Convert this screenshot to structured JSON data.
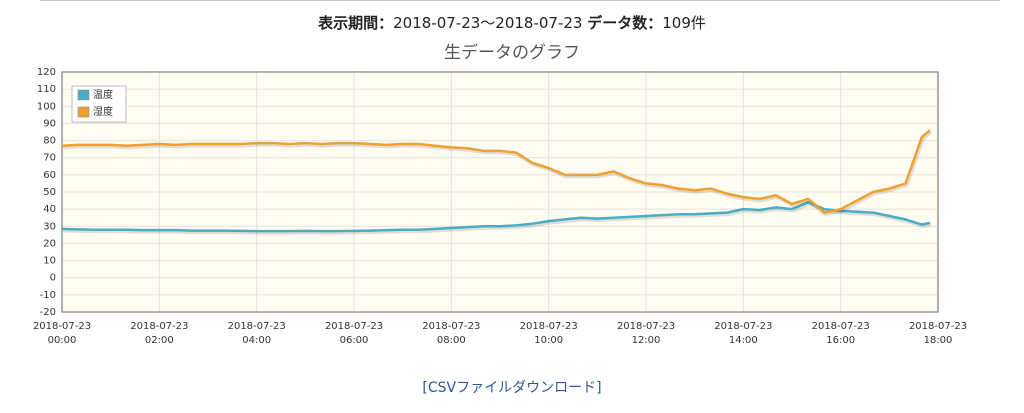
{
  "header": {
    "period_label": "表示期間：",
    "period": "2018-07-23〜2018-07-23",
    "count_label": "データ数：",
    "count": "109件"
  },
  "chart_data": {
    "type": "line",
    "title": "生データのグラフ",
    "x": [
      "2018-07-23 00:00",
      "2018-07-23 00:20",
      "2018-07-23 00:40",
      "2018-07-23 01:00",
      "2018-07-23 01:20",
      "2018-07-23 01:40",
      "2018-07-23 02:00",
      "2018-07-23 02:20",
      "2018-07-23 02:40",
      "2018-07-23 03:00",
      "2018-07-23 03:20",
      "2018-07-23 03:40",
      "2018-07-23 04:00",
      "2018-07-23 04:20",
      "2018-07-23 04:40",
      "2018-07-23 05:00",
      "2018-07-23 05:20",
      "2018-07-23 05:40",
      "2018-07-23 06:00",
      "2018-07-23 06:20",
      "2018-07-23 06:40",
      "2018-07-23 07:00",
      "2018-07-23 07:20",
      "2018-07-23 07:40",
      "2018-07-23 08:00",
      "2018-07-23 08:20",
      "2018-07-23 08:40",
      "2018-07-23 09:00",
      "2018-07-23 09:20",
      "2018-07-23 09:40",
      "2018-07-23 10:00",
      "2018-07-23 10:20",
      "2018-07-23 10:40",
      "2018-07-23 11:00",
      "2018-07-23 11:20",
      "2018-07-23 11:40",
      "2018-07-23 12:00",
      "2018-07-23 12:20",
      "2018-07-23 12:40",
      "2018-07-23 13:00",
      "2018-07-23 13:20",
      "2018-07-23 13:40",
      "2018-07-23 14:00",
      "2018-07-23 14:20",
      "2018-07-23 14:40",
      "2018-07-23 15:00",
      "2018-07-23 15:20",
      "2018-07-23 15:40",
      "2018-07-23 16:00",
      "2018-07-23 16:20",
      "2018-07-23 16:40",
      "2018-07-23 17:00",
      "2018-07-23 17:20",
      "2018-07-23 17:40",
      "2018-07-23 17:50"
    ],
    "series": [
      {
        "name": "温度",
        "color": "#4bacc6",
        "values": [
          28.5,
          28.2,
          28,
          28,
          28,
          27.8,
          27.8,
          27.8,
          27.5,
          27.5,
          27.5,
          27.3,
          27.2,
          27.2,
          27.2,
          27.3,
          27.2,
          27.2,
          27.3,
          27.5,
          27.8,
          28,
          28,
          28.5,
          29,
          29.5,
          30,
          30,
          30.5,
          31.5,
          33,
          34,
          35,
          34.5,
          35,
          35.5,
          36,
          36.5,
          37,
          37,
          37.5,
          38,
          40,
          39.5,
          41,
          40,
          44,
          40,
          39,
          38.5,
          38,
          36,
          34,
          31,
          32
        ]
      },
      {
        "name": "湿度",
        "color": "#f0a030",
        "values": [
          77,
          77.5,
          77.5,
          77.5,
          77,
          77.5,
          78,
          77.5,
          78,
          78,
          78,
          78,
          78.5,
          78.5,
          78,
          78.5,
          78,
          78.5,
          78.5,
          78,
          77.5,
          78,
          78,
          77,
          76,
          75.5,
          74,
          74,
          73,
          67,
          64,
          60,
          60,
          60,
          62,
          58,
          55,
          54,
          52,
          51,
          52,
          49,
          47,
          46,
          48,
          43,
          46,
          38,
          40,
          45,
          50,
          52,
          55,
          82,
          86
        ]
      }
    ],
    "xlim": [
      "2018-07-23 00:00",
      "2018-07-23 18:00"
    ],
    "xticks": [
      "2018-07-23 00:00",
      "2018-07-23 02:00",
      "2018-07-23 04:00",
      "2018-07-23 06:00",
      "2018-07-23 08:00",
      "2018-07-23 10:00",
      "2018-07-23 12:00",
      "2018-07-23 14:00",
      "2018-07-23 16:00",
      "2018-07-23 18:00"
    ],
    "ylim": [
      -20,
      120
    ],
    "yticks": [
      -20,
      -10,
      0,
      10,
      20,
      30,
      40,
      50,
      60,
      70,
      80,
      90,
      100,
      110,
      120
    ],
    "grid": true,
    "legend": "upper left"
  },
  "link": "[CSVファイルダウンロード]"
}
